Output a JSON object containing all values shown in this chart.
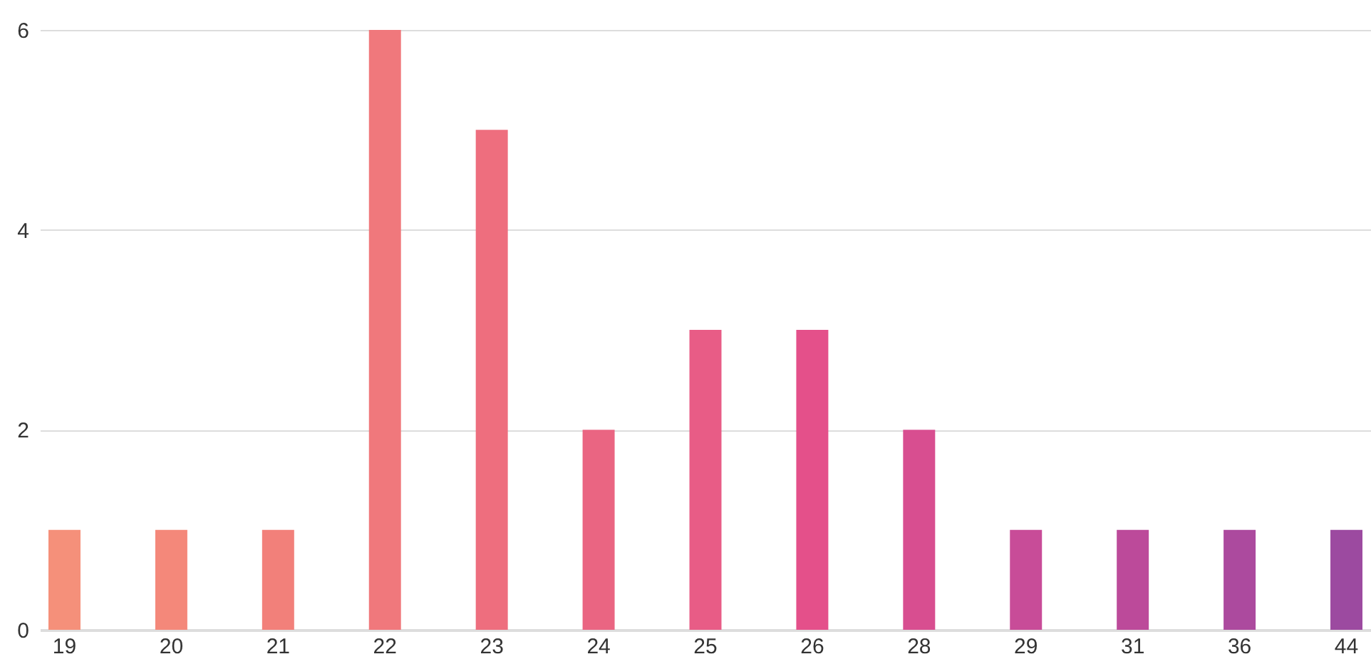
{
  "chart_data": {
    "type": "bar",
    "categories": [
      "19",
      "20",
      "21",
      "22",
      "23",
      "24",
      "25",
      "26",
      "28",
      "29",
      "31",
      "36",
      "44"
    ],
    "values": [
      1,
      1,
      1,
      6,
      5,
      2,
      3,
      3,
      2,
      1,
      1,
      1,
      1
    ],
    "colors": [
      "#f5907a",
      "#f4887a",
      "#f2807a",
      "#f0787c",
      "#ee6e7e",
      "#ea6582",
      "#e85c86",
      "#e4508a",
      "#d84e90",
      "#c84c98",
      "#bc4a9a",
      "#ac4a9e",
      "#9c4aa0"
    ],
    "ylim": [
      0,
      6
    ],
    "yticks": [
      0,
      2,
      4,
      6
    ],
    "grid": true
  }
}
